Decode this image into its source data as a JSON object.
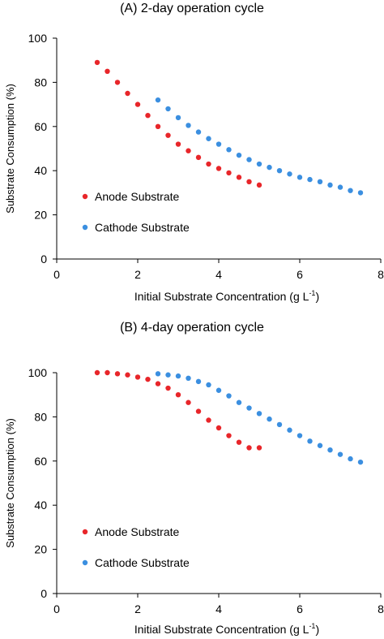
{
  "chart_data": [
    {
      "type": "scatter",
      "title": "(A) 2-day operation cycle",
      "xlabel_main": "Initial Substrate Concentration (g L",
      "xlabel_sup": "-1",
      "xlabel_end": ")",
      "ylabel": "Substrate Consumption (%)",
      "xlim": [
        0,
        8
      ],
      "ylim": [
        0,
        100
      ],
      "xticks": [
        "0",
        "2",
        "4",
        "6",
        "8"
      ],
      "yticks": [
        "0",
        "20",
        "40",
        "60",
        "80",
        "100"
      ],
      "legend_placement": "lower-left",
      "grid": false,
      "series": [
        {
          "name": "Anode Substrate",
          "color": "#e8262a",
          "x": [
            1.0,
            1.25,
            1.5,
            1.75,
            2.0,
            2.25,
            2.5,
            2.75,
            3.0,
            3.25,
            3.5,
            3.75,
            4.0,
            4.25,
            4.5,
            4.75,
            5.0
          ],
          "y": [
            89,
            85,
            80,
            75,
            70,
            65,
            60,
            56,
            52,
            49,
            46,
            43,
            41,
            39,
            37,
            35,
            33.5
          ]
        },
        {
          "name": "Cathode  Substrate",
          "color": "#3b8fe0",
          "x": [
            2.5,
            2.75,
            3.0,
            3.25,
            3.5,
            3.75,
            4.0,
            4.25,
            4.5,
            4.75,
            5.0,
            5.25,
            5.5,
            5.75,
            6.0,
            6.25,
            6.5,
            6.75,
            7.0,
            7.25,
            7.5
          ],
          "y": [
            72,
            68,
            64,
            60.5,
            57.5,
            54.5,
            52,
            49.5,
            47,
            45,
            43,
            41.5,
            40,
            38.5,
            37,
            36,
            35,
            33.5,
            32.5,
            31,
            30
          ]
        }
      ]
    },
    {
      "type": "scatter",
      "title": "(B) 4-day operation cycle",
      "xlabel_main": "Initial Substrate Concentration (g L",
      "xlabel_sup": "-1",
      "xlabel_end": ")",
      "ylabel": "Substrate Consumption (%)",
      "xlim": [
        0,
        8
      ],
      "ylim": [
        0,
        100
      ],
      "xticks": [
        "0",
        "2",
        "4",
        "6",
        "8"
      ],
      "yticks": [
        "0",
        "20",
        "40",
        "60",
        "80",
        "100"
      ],
      "legend_placement": "lower-left",
      "grid": false,
      "series": [
        {
          "name": "Anode Substrate",
          "color": "#e8262a",
          "x": [
            1.0,
            1.25,
            1.5,
            1.75,
            2.0,
            2.25,
            2.5,
            2.75,
            3.0,
            3.25,
            3.5,
            3.75,
            4.0,
            4.25,
            4.5,
            4.75,
            5.0
          ],
          "y": [
            100,
            100,
            99.5,
            99,
            98,
            97,
            95,
            93,
            90,
            86.5,
            82.5,
            78.5,
            75,
            71.5,
            68.5,
            66,
            66
          ]
        },
        {
          "name": "Cathode  Substrate",
          "color": "#3b8fe0",
          "x": [
            2.5,
            2.75,
            3.0,
            3.25,
            3.5,
            3.75,
            4.0,
            4.25,
            4.5,
            4.75,
            5.0,
            5.25,
            5.5,
            5.75,
            6.0,
            6.25,
            6.5,
            6.75,
            7.0,
            7.25,
            7.5
          ],
          "y": [
            99.5,
            99,
            98.5,
            97.5,
            96,
            94.5,
            92,
            89.5,
            86.5,
            84,
            81.5,
            79,
            76.5,
            74,
            71.5,
            69,
            67,
            65,
            63,
            61,
            59.5
          ]
        }
      ]
    }
  ]
}
